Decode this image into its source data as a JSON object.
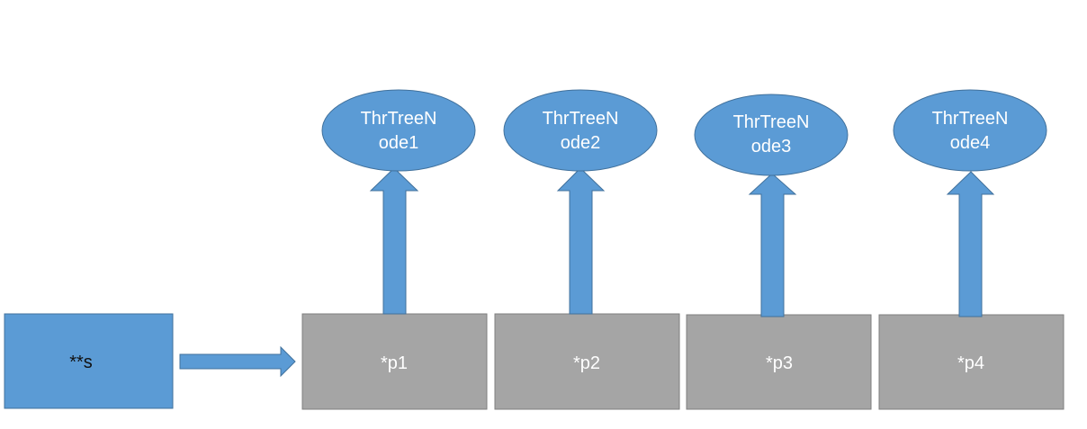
{
  "diagram": {
    "source": {
      "label": "**s"
    },
    "pointers": [
      {
        "label": "*p1"
      },
      {
        "label": "*p2"
      },
      {
        "label": "*p3"
      },
      {
        "label": "*p4"
      }
    ],
    "nodes": [
      {
        "line1": "ThrTreeN",
        "line2": "ode1"
      },
      {
        "line1": "ThrTreeN",
        "line2": "ode2"
      },
      {
        "line1": "ThrTreeN",
        "line2": "ode3"
      },
      {
        "line1": "ThrTreeN",
        "line2": "ode4"
      }
    ]
  },
  "colors": {
    "blue_fill": "#5b9bd5",
    "blue_stroke": "#41719c",
    "gray_fill": "#a5a5a5",
    "gray_stroke": "#7f7f7f"
  }
}
